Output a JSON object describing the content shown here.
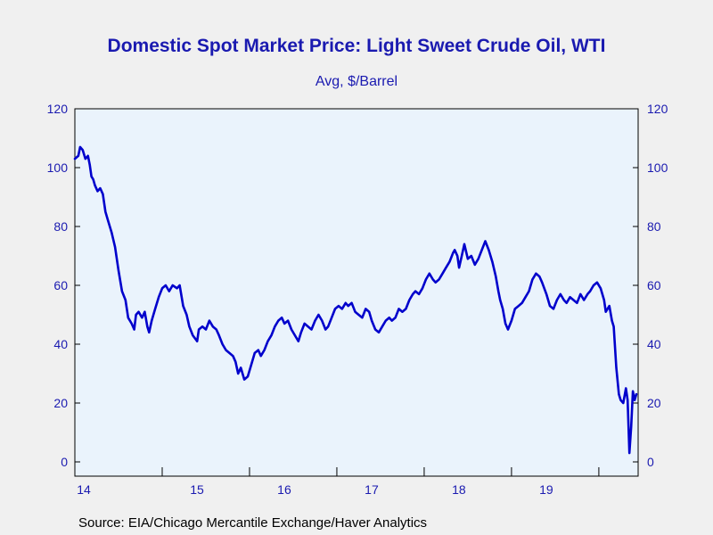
{
  "colors": {
    "background": "#f0f0f0",
    "plot_background": "#eaf3fc",
    "line": "#0000cc",
    "text": "#1a1ab0"
  },
  "chart_data": {
    "type": "line",
    "title": "Domestic Spot Market Price: Light Sweet Crude Oil, WTI",
    "subtitle": "Avg, $/Barrel",
    "source": "Source:  EIA/Chicago Mercantile Exchange/Haver Analytics",
    "xlim": [
      2014.0,
      2020.45
    ],
    "ylim": [
      0,
      120
    ],
    "yticks": [
      0,
      20,
      40,
      60,
      80,
      100,
      120
    ],
    "xticks": [
      {
        "label": "14",
        "value": 2014
      },
      {
        "label": "15",
        "value": 2015
      },
      {
        "label": "16",
        "value": 2016
      },
      {
        "label": "17",
        "value": 2017
      },
      {
        "label": "18",
        "value": 2018
      },
      {
        "label": "19",
        "value": 2019
      }
    ],
    "grid": false,
    "legend": "none",
    "series": [
      {
        "points": [
          [
            2014.0,
            103
          ],
          [
            2014.04,
            104
          ],
          [
            2014.06,
            107
          ],
          [
            2014.09,
            106
          ],
          [
            2014.12,
            103
          ],
          [
            2014.15,
            104
          ],
          [
            2014.17,
            101
          ],
          [
            2014.19,
            97
          ],
          [
            2014.21,
            96
          ],
          [
            2014.23,
            94
          ],
          [
            2014.26,
            92
          ],
          [
            2014.29,
            93
          ],
          [
            2014.32,
            91
          ],
          [
            2014.35,
            85
          ],
          [
            2014.38,
            82
          ],
          [
            2014.42,
            78
          ],
          [
            2014.46,
            73
          ],
          [
            2014.5,
            65
          ],
          [
            2014.54,
            58
          ],
          [
            2014.58,
            55
          ],
          [
            2014.61,
            49
          ],
          [
            2014.65,
            47
          ],
          [
            2014.68,
            45
          ],
          [
            2014.7,
            50
          ],
          [
            2014.73,
            51
          ],
          [
            2014.77,
            49
          ],
          [
            2014.8,
            51
          ],
          [
            2014.83,
            46
          ],
          [
            2014.85,
            44
          ],
          [
            2014.88,
            48
          ],
          [
            2014.92,
            52
          ],
          [
            2014.96,
            56
          ],
          [
            2015.0,
            59
          ],
          [
            2015.04,
            60
          ],
          [
            2015.08,
            58
          ],
          [
            2015.12,
            60
          ],
          [
            2015.17,
            59
          ],
          [
            2015.2,
            60
          ],
          [
            2015.24,
            53
          ],
          [
            2015.28,
            50
          ],
          [
            2015.31,
            46
          ],
          [
            2015.35,
            43
          ],
          [
            2015.4,
            41
          ],
          [
            2015.42,
            45
          ],
          [
            2015.46,
            46
          ],
          [
            2015.5,
            45
          ],
          [
            2015.54,
            48
          ],
          [
            2015.58,
            46
          ],
          [
            2015.62,
            45
          ],
          [
            2015.65,
            43
          ],
          [
            2015.69,
            40
          ],
          [
            2015.73,
            38
          ],
          [
            2015.77,
            37
          ],
          [
            2015.81,
            36
          ],
          [
            2015.84,
            34
          ],
          [
            2015.87,
            30
          ],
          [
            2015.9,
            32
          ],
          [
            2015.94,
            28
          ],
          [
            2015.98,
            29
          ],
          [
            2016.02,
            33
          ],
          [
            2016.06,
            37
          ],
          [
            2016.1,
            38
          ],
          [
            2016.13,
            36
          ],
          [
            2016.17,
            38
          ],
          [
            2016.21,
            41
          ],
          [
            2016.25,
            43
          ],
          [
            2016.29,
            46
          ],
          [
            2016.33,
            48
          ],
          [
            2016.37,
            49
          ],
          [
            2016.4,
            47
          ],
          [
            2016.44,
            48
          ],
          [
            2016.48,
            45
          ],
          [
            2016.52,
            43
          ],
          [
            2016.56,
            41
          ],
          [
            2016.59,
            44
          ],
          [
            2016.63,
            47
          ],
          [
            2016.67,
            46
          ],
          [
            2016.71,
            45
          ],
          [
            2016.75,
            48
          ],
          [
            2016.79,
            50
          ],
          [
            2016.83,
            48
          ],
          [
            2016.87,
            45
          ],
          [
            2016.9,
            46
          ],
          [
            2016.94,
            49
          ],
          [
            2016.98,
            52
          ],
          [
            2017.02,
            53
          ],
          [
            2017.06,
            52
          ],
          [
            2017.1,
            54
          ],
          [
            2017.13,
            53
          ],
          [
            2017.17,
            54
          ],
          [
            2017.21,
            51
          ],
          [
            2017.25,
            50
          ],
          [
            2017.29,
            49
          ],
          [
            2017.33,
            52
          ],
          [
            2017.37,
            51
          ],
          [
            2017.4,
            48
          ],
          [
            2017.44,
            45
          ],
          [
            2017.48,
            44
          ],
          [
            2017.52,
            46
          ],
          [
            2017.56,
            48
          ],
          [
            2017.6,
            49
          ],
          [
            2017.63,
            48
          ],
          [
            2017.67,
            49
          ],
          [
            2017.71,
            52
          ],
          [
            2017.75,
            51
          ],
          [
            2017.79,
            52
          ],
          [
            2017.83,
            55
          ],
          [
            2017.87,
            57
          ],
          [
            2017.9,
            58
          ],
          [
            2017.94,
            57
          ],
          [
            2017.98,
            59
          ],
          [
            2018.02,
            62
          ],
          [
            2018.06,
            64
          ],
          [
            2018.1,
            62
          ],
          [
            2018.13,
            61
          ],
          [
            2018.17,
            62
          ],
          [
            2018.21,
            64
          ],
          [
            2018.25,
            66
          ],
          [
            2018.29,
            68
          ],
          [
            2018.33,
            71
          ],
          [
            2018.35,
            72
          ],
          [
            2018.38,
            70
          ],
          [
            2018.4,
            66
          ],
          [
            2018.43,
            70
          ],
          [
            2018.46,
            74
          ],
          [
            2018.5,
            69
          ],
          [
            2018.54,
            70
          ],
          [
            2018.58,
            67
          ],
          [
            2018.62,
            69
          ],
          [
            2018.66,
            72
          ],
          [
            2018.7,
            75
          ],
          [
            2018.74,
            72
          ],
          [
            2018.78,
            68
          ],
          [
            2018.82,
            63
          ],
          [
            2018.85,
            58
          ],
          [
            2018.87,
            55
          ],
          [
            2018.9,
            52
          ],
          [
            2018.93,
            47
          ],
          [
            2018.96,
            45
          ],
          [
            2019.0,
            48
          ],
          [
            2019.04,
            52
          ],
          [
            2019.08,
            53
          ],
          [
            2019.12,
            54
          ],
          [
            2019.16,
            56
          ],
          [
            2019.2,
            58
          ],
          [
            2019.24,
            62
          ],
          [
            2019.28,
            64
          ],
          [
            2019.32,
            63
          ],
          [
            2019.35,
            61
          ],
          [
            2019.4,
            57
          ],
          [
            2019.44,
            53
          ],
          [
            2019.48,
            52
          ],
          [
            2019.52,
            55
          ],
          [
            2019.56,
            57
          ],
          [
            2019.6,
            55
          ],
          [
            2019.63,
            54
          ],
          [
            2019.67,
            56
          ],
          [
            2019.71,
            55
          ],
          [
            2019.75,
            54
          ],
          [
            2019.79,
            57
          ],
          [
            2019.83,
            55
          ],
          [
            2019.87,
            57
          ],
          [
            2019.9,
            58
          ],
          [
            2019.94,
            60
          ],
          [
            2019.98,
            61
          ],
          [
            2020.02,
            59
          ],
          [
            2020.06,
            55
          ],
          [
            2020.08,
            51
          ],
          [
            2020.12,
            53
          ],
          [
            2020.15,
            48
          ],
          [
            2020.17,
            46
          ],
          [
            2020.2,
            32
          ],
          [
            2020.23,
            23
          ],
          [
            2020.25,
            21
          ],
          [
            2020.28,
            20
          ],
          [
            2020.31,
            25
          ],
          [
            2020.33,
            21
          ],
          [
            2020.35,
            3
          ],
          [
            2020.37,
            12
          ],
          [
            2020.39,
            24
          ],
          [
            2020.41,
            21
          ],
          [
            2020.43,
            23
          ]
        ]
      }
    ]
  }
}
